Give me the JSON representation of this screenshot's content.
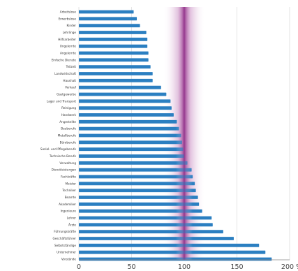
{
  "chart_data": {
    "type": "bar",
    "orientation": "horizontal",
    "categories": [
      "Arbeitslose",
      "Erwerbslose",
      "Kinder",
      "Lehrlinge",
      "Hilfsarbeiter",
      "Ungelernte",
      "Angelernte",
      "Einfache Dienste",
      "Teilzeit",
      "Landwirtschaft",
      "Haushalt",
      "Verkauf",
      "Gastgewerbe",
      "Lager und Transport",
      "Reinigung",
      "Handwerk",
      "Angestellte",
      "Bauberufe",
      "Metallberufe",
      "Büroberufe",
      "Sozial- und Pflegeberufe",
      "Technische Berufe",
      "Verwaltung",
      "Dienstleistungen",
      "Fachkräfte",
      "Meister",
      "Techniker",
      "Beamte",
      "Akademiker",
      "Ingenieure",
      "Lehrer",
      "Ärzte",
      "Führungskräfte",
      "Geschäftsführer",
      "Selbstständige",
      "Unternehmer",
      "Vorstände"
    ],
    "values": [
      52,
      55,
      58,
      64,
      65,
      65,
      66,
      66,
      68,
      70,
      70,
      78,
      83,
      87,
      88,
      90,
      93,
      95,
      97,
      98,
      99,
      100,
      103,
      107,
      108,
      110,
      111,
      113,
      114,
      117,
      126,
      127,
      137,
      147,
      171,
      177,
      183
    ],
    "xlim": [
      0,
      200
    ],
    "xticks": [
      "0",
      "50",
      "100",
      "150",
      "200 %"
    ],
    "title": "",
    "xlabel": "",
    "ylabel": "",
    "grid": true,
    "reference_value": 100,
    "colors": {
      "bar": "#2b7fc1",
      "reference_band": "#8e2a86",
      "grid": "#dddddd",
      "axis": "#888888"
    }
  }
}
